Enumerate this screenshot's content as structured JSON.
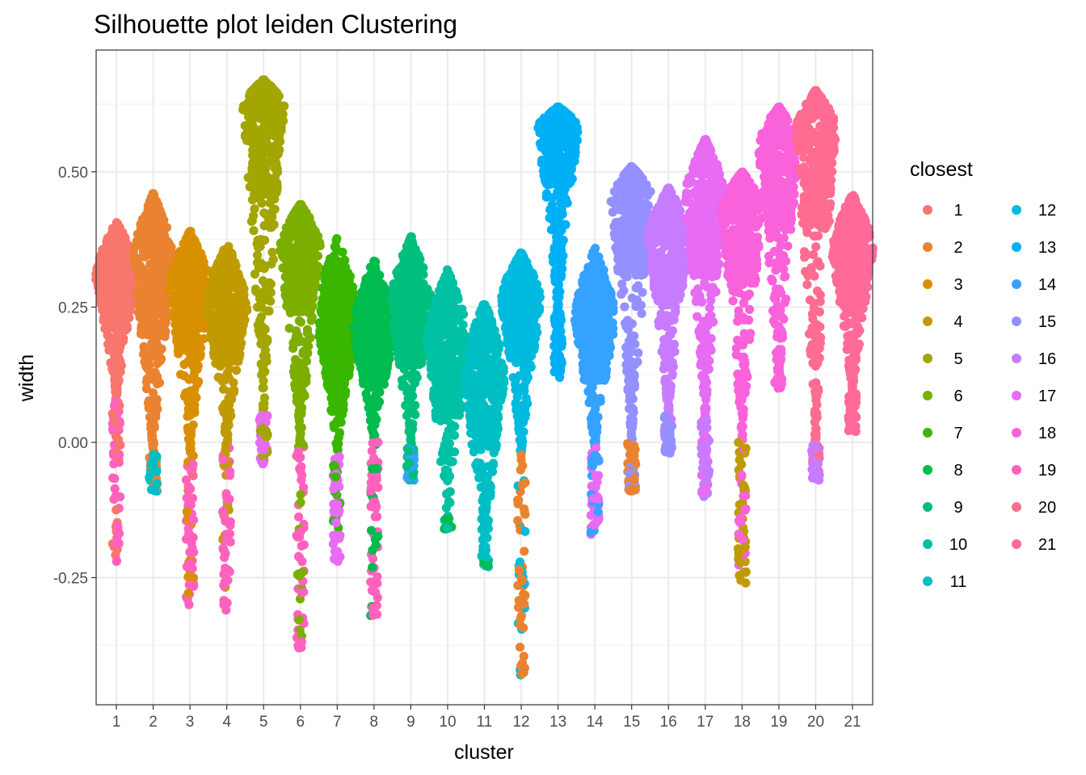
{
  "chart_data": {
    "type": "scatter",
    "title": "Silhouette plot leiden Clustering",
    "xlabel": "cluster",
    "ylabel": "width",
    "categories": [
      "1",
      "2",
      "3",
      "4",
      "5",
      "6",
      "7",
      "8",
      "9",
      "10",
      "11",
      "12",
      "13",
      "14",
      "15",
      "16",
      "17",
      "18",
      "19",
      "20",
      "21"
    ],
    "yticks": [
      -0.25,
      0.0,
      0.25,
      0.5
    ],
    "ytick_labels": [
      "-0.25",
      "0.00",
      "0.25",
      "0.50"
    ],
    "ylim": [
      -0.485,
      0.725
    ],
    "grid": true,
    "legend": {
      "title": "closest",
      "position": "right",
      "columns": 2,
      "entries": [
        "1",
        "2",
        "3",
        "4",
        "5",
        "6",
        "7",
        "8",
        "9",
        "10",
        "11",
        "12",
        "13",
        "14",
        "15",
        "16",
        "17",
        "18",
        "19",
        "20",
        "21"
      ]
    },
    "palette": [
      "#F8766D",
      "#EA8331",
      "#D89000",
      "#C09B00",
      "#A3A500",
      "#7CAE00",
      "#39B600",
      "#00BB4E",
      "#00BF7D",
      "#00C1A3",
      "#00BFC4",
      "#00BAE0",
      "#00B0F6",
      "#35A2FF",
      "#9590FF",
      "#C77CFF",
      "#E76BF3",
      "#FA62DB",
      "#FF62BC",
      "#FF6C91",
      "#FF6A98"
    ],
    "series": [
      {
        "cluster": "1",
        "max": 0.41,
        "median": 0.3,
        "main_min": 0.08,
        "outliers_min": -0.22,
        "dominant_closest": "1",
        "outlier_closest": "19"
      },
      {
        "cluster": "2",
        "max": 0.46,
        "median": 0.33,
        "main_min": -0.02,
        "outliers_min": -0.09,
        "dominant_closest": "2",
        "outlier_closest": "11"
      },
      {
        "cluster": "3",
        "max": 0.39,
        "median": 0.28,
        "main_min": -0.02,
        "outliers_min": -0.3,
        "dominant_closest": "3",
        "outlier_closest": "19"
      },
      {
        "cluster": "4",
        "max": 0.37,
        "median": 0.25,
        "main_min": -0.01,
        "outliers_min": -0.31,
        "dominant_closest": "4",
        "outlier_closest": "19"
      },
      {
        "cluster": "5",
        "max": 0.67,
        "median": 0.62,
        "main_min": 0.05,
        "outliers_min": -0.04,
        "dominant_closest": "5",
        "outlier_closest": "17"
      },
      {
        "cluster": "6",
        "max": 0.44,
        "median": 0.36,
        "main_min": 0.0,
        "outliers_min": -0.38,
        "dominant_closest": "6",
        "outlier_closest": "19"
      },
      {
        "cluster": "7",
        "max": 0.38,
        "median": 0.22,
        "main_min": -0.02,
        "outliers_min": -0.22,
        "dominant_closest": "7",
        "outlier_closest": "17"
      },
      {
        "cluster": "8",
        "max": 0.34,
        "median": 0.2,
        "main_min": 0.0,
        "outliers_min": -0.32,
        "dominant_closest": "8",
        "outlier_closest": "19"
      },
      {
        "cluster": "9",
        "max": 0.38,
        "median": 0.25,
        "main_min": -0.01,
        "outliers_min": -0.07,
        "dominant_closest": "9",
        "outlier_closest": "14"
      },
      {
        "cluster": "10",
        "max": 0.32,
        "median": 0.18,
        "main_min": -0.16,
        "outliers_min": -0.16,
        "dominant_closest": "10",
        "outlier_closest": "8"
      },
      {
        "cluster": "11",
        "max": 0.26,
        "median": 0.12,
        "main_min": -0.23,
        "outliers_min": -0.23,
        "dominant_closest": "11",
        "outlier_closest": "8"
      },
      {
        "cluster": "12",
        "max": 0.35,
        "median": 0.26,
        "main_min": -0.02,
        "outliers_min": -0.43,
        "dominant_closest": "12",
        "outlier_closest": "2"
      },
      {
        "cluster": "13",
        "max": 0.62,
        "median": 0.58,
        "main_min": 0.24,
        "outliers_min": 0.12,
        "dominant_closest": "13",
        "outlier_closest": "13"
      },
      {
        "cluster": "14",
        "max": 0.36,
        "median": 0.22,
        "main_min": -0.01,
        "outliers_min": -0.17,
        "dominant_closest": "14",
        "outlier_closest": "17"
      },
      {
        "cluster": "15",
        "max": 0.51,
        "median": 0.45,
        "main_min": 0.0,
        "outliers_min": -0.09,
        "dominant_closest": "15",
        "outlier_closest": "2"
      },
      {
        "cluster": "16",
        "max": 0.47,
        "median": 0.38,
        "main_min": 0.05,
        "outliers_min": -0.02,
        "dominant_closest": "16",
        "outlier_closest": "15"
      },
      {
        "cluster": "17",
        "max": 0.56,
        "median": 0.45,
        "main_min": 0.04,
        "outliers_min": -0.1,
        "dominant_closest": "17",
        "outlier_closest": "16"
      },
      {
        "cluster": "18",
        "max": 0.5,
        "median": 0.43,
        "main_min": 0.0,
        "outliers_min": -0.26,
        "dominant_closest": "18",
        "outlier_closest": "4"
      },
      {
        "cluster": "19",
        "max": 0.62,
        "median": 0.55,
        "main_min": 0.1,
        "outliers_min": 0.1,
        "dominant_closest": "18",
        "outlier_closest": "18"
      },
      {
        "cluster": "20",
        "max": 0.65,
        "median": 0.58,
        "main_min": 0.0,
        "outliers_min": -0.07,
        "dominant_closest": "20",
        "outlier_closest": "16"
      },
      {
        "cluster": "21",
        "max": 0.46,
        "median": 0.35,
        "main_min": 0.09,
        "outliers_min": 0.02,
        "dominant_closest": "21",
        "outlier_closest": "21"
      }
    ]
  }
}
